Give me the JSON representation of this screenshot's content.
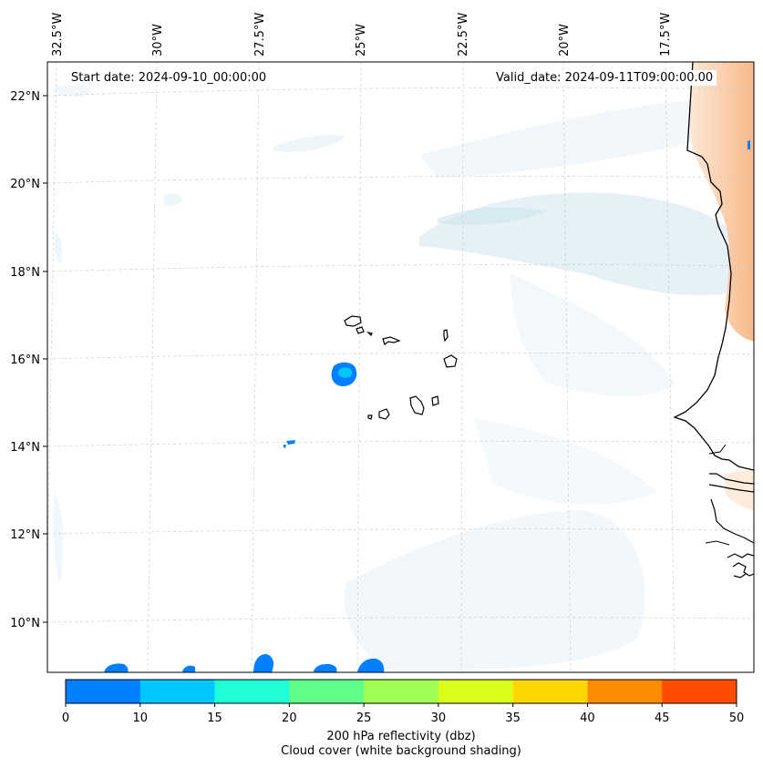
{
  "map": {
    "lon_ticks": [
      "32.5°W",
      "30°W",
      "27.5°W",
      "25°W",
      "22.5°W",
      "20°W",
      "17.5°W"
    ],
    "lat_ticks": [
      "22°N",
      "20°N",
      "18°N",
      "16°N",
      "14°N",
      "12°N",
      "10°N"
    ],
    "start_date": "Start date: 2024-09-10_00:00:00",
    "valid_date": "Valid_date: 2024-09-11T09:00:00.00"
  },
  "colorbar": {
    "ticks": [
      "0",
      "10",
      "15",
      "20",
      "25",
      "30",
      "35",
      "40",
      "45",
      "50"
    ],
    "colors": [
      "#0080ff",
      "#00c8ff",
      "#1effd8",
      "#5fff8a",
      "#a0ff50",
      "#dcff1a",
      "#ffd700",
      "#ff8c00",
      "#ff4d00"
    ],
    "label_line1": "200 hPa reflectivity (dbz)",
    "label_line2": "Cloud cover (white background shading)"
  },
  "styles": {
    "frame": "#000000",
    "grid": "#cccccc",
    "cloud": "#cfe6ee",
    "warm_shading": "#f8cfa8",
    "reflectivity": "#0080ff",
    "coast": "#000000"
  }
}
